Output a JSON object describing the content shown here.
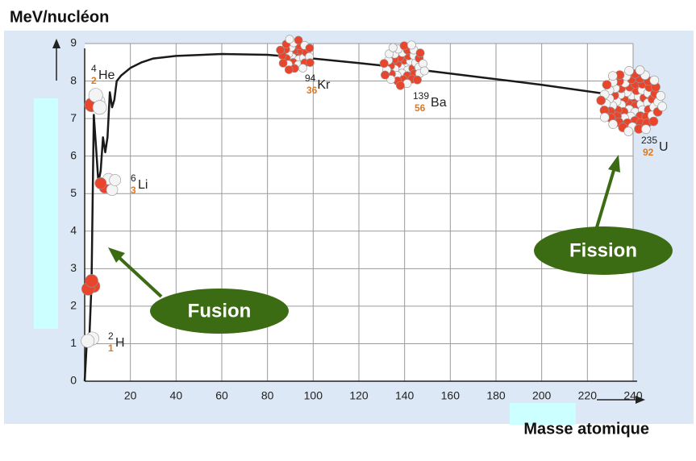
{
  "chart_data": {
    "type": "line",
    "y_label": "MeV/nucléon",
    "x_label": "Masse atomique",
    "x": [
      0,
      1,
      2,
      3,
      4,
      5,
      6,
      7,
      8,
      9,
      10,
      11,
      12,
      13,
      14,
      16,
      20,
      25,
      30,
      40,
      60,
      80,
      100,
      120,
      140,
      160,
      180,
      200,
      235
    ],
    "values": [
      0,
      1.1,
      1.1,
      2.6,
      7.1,
      6.2,
      5.3,
      5.6,
      6.5,
      6.1,
      6.5,
      7.7,
      7.3,
      7.5,
      8.0,
      8.15,
      8.35,
      8.5,
      8.6,
      8.67,
      8.72,
      8.7,
      8.6,
      8.48,
      8.35,
      8.2,
      8.05,
      7.9,
      7.6
    ],
    "color": "#1a1a1a",
    "xlim": [
      0,
      240
    ],
    "xticks": [
      20,
      40,
      60,
      80,
      100,
      120,
      140,
      160,
      180,
      200,
      220,
      240
    ],
    "ylim": [
      0,
      9
    ],
    "yticks": [
      0,
      1,
      2,
      3,
      4,
      5,
      6,
      7,
      8,
      9
    ],
    "grid": true,
    "nuclides": [
      {
        "A": "4",
        "Z": "2",
        "symbol": "He"
      },
      {
        "A": "6",
        "Z": "3",
        "symbol": "Li"
      },
      {
        "A": "2",
        "Z": "1",
        "symbol": "H"
      },
      {
        "A": "94",
        "Z": "36",
        "symbol": "Kr"
      },
      {
        "A": "139",
        "Z": "56",
        "symbol": "Ba"
      },
      {
        "A": "235",
        "Z": "92",
        "symbol": "U"
      }
    ],
    "annotations": [
      "Fusion",
      "Fission"
    ]
  }
}
